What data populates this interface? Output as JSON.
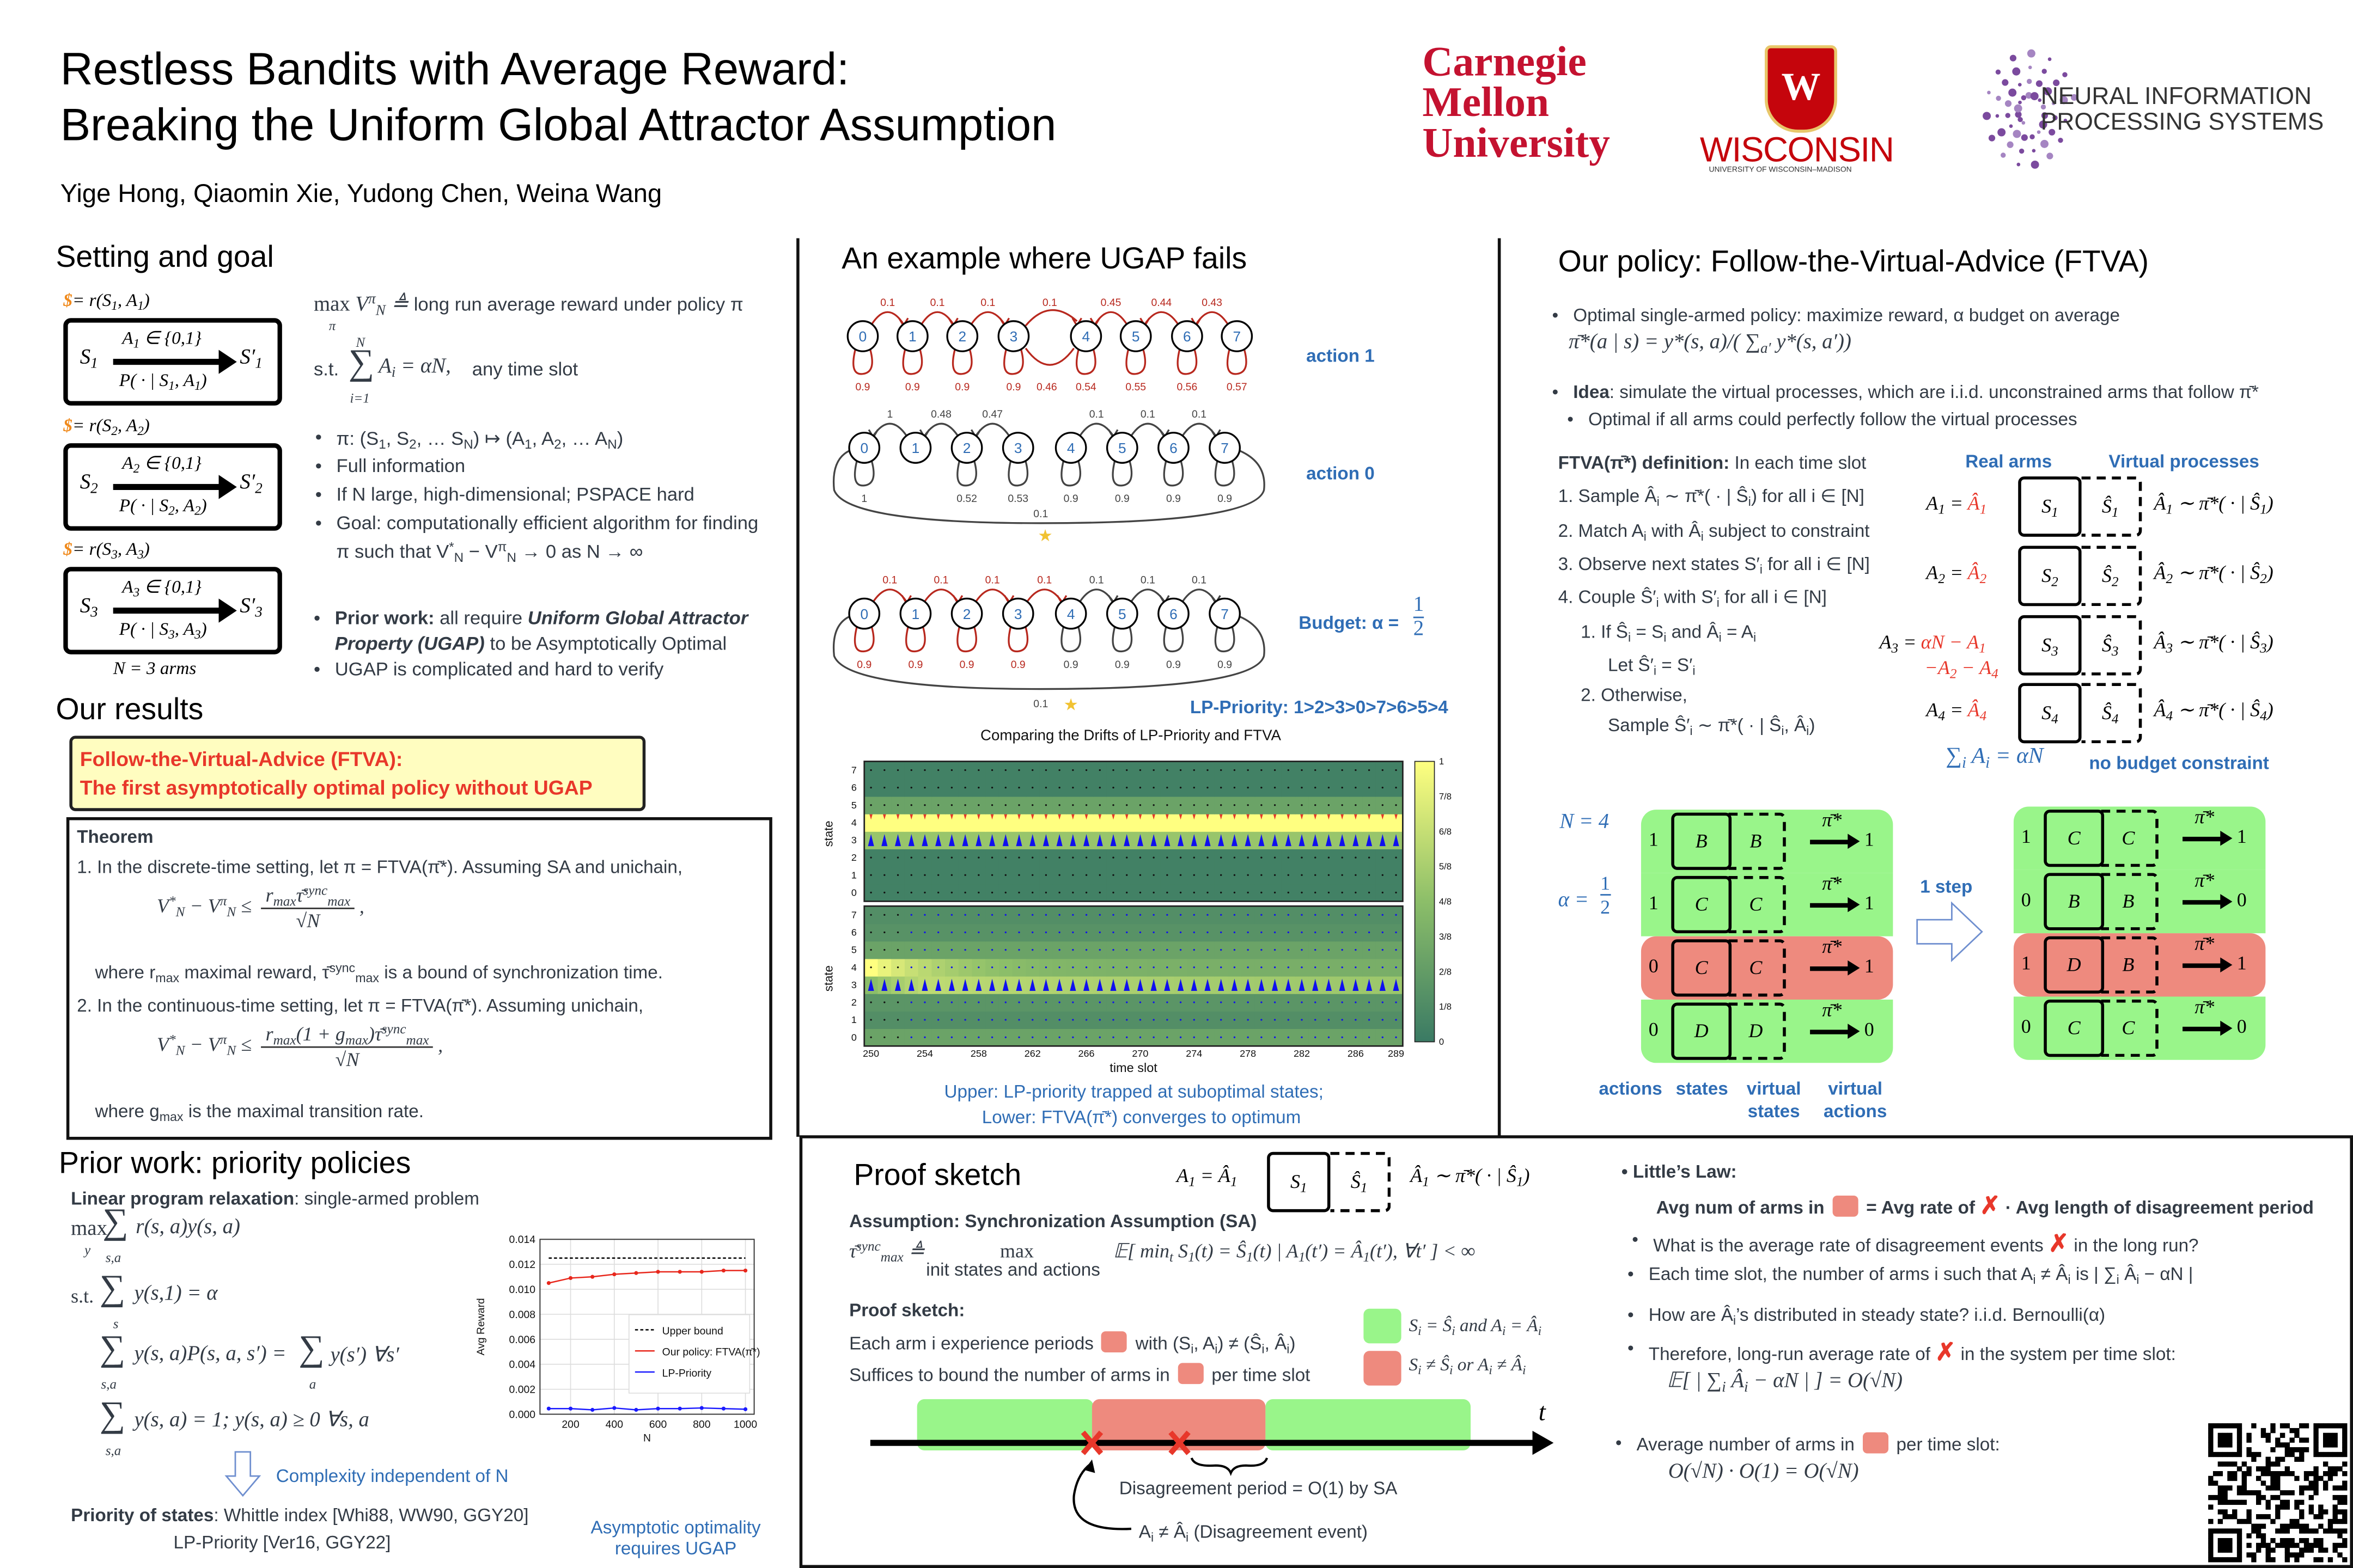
{
  "header": {
    "title_line1": "Restless Bandits with Average Reward:",
    "title_line2": "Breaking the Uniform Global Attractor Assumption",
    "authors": "Yige Hong, Qiaomin Xie, Yudong Chen, Weina Wang"
  },
  "logos": {
    "cmu": [
      "Carnegie",
      "Mellon",
      "University"
    ],
    "wisconsin": "WISCONSIN",
    "wisconsin_sub": "UNIVERSITY OF WISCONSIN–MADISON",
    "wisconsin_crest": "W",
    "neurips_line1": "NEURAL INFORMATION",
    "neurips_line2": "PROCESSING SYSTEMS"
  },
  "setting": {
    "heading": "Setting and goal",
    "dollar": "$",
    "arms": [
      {
        "reward": "= r(S_{1}, A_{1})",
        "action": "A_{1} ∈ {0,1}",
        "state": "S_{1}",
        "next": "S′_{1}",
        "trans": "P( · | S_{1}, A_{1})"
      },
      {
        "reward": "= r(S_{2}, A_{2})",
        "action": "A_{2} ∈ {0,1}",
        "state": "S_{2}",
        "next": "S′_{2}",
        "trans": "P( · | S_{2}, A_{2})"
      },
      {
        "reward": "= r(S_{3}, A_{3})",
        "action": "A_{3} ∈ {0,1}",
        "state": "S_{3}",
        "next": "S′_{3}",
        "trans": "P( · | S_{3}, A_{3})"
      }
    ],
    "n_arms": "N = 3 arms",
    "objective_max": "max",
    "objective_sub": "π",
    "objective_v": "V^{π}_{N} ≜",
    "objective_text": "long run average reward under policy π",
    "st": "s.t.",
    "sum_top": "N",
    "sum_bottom": "i=1",
    "constraint": "A_{i} = αN,",
    "constraint_text": "any time slot",
    "bullets": [
      "π: (S_{1}, S_{2}, … S_{N}) ↦ (A_{1}, A_{2}, … A_{N})",
      "Full information",
      "If N large, high-dimensional; PSPACE hard",
      "Goal: computationally efficient algorithm for finding",
      "π such that V^{*}_{N} − V^{π}_{N} → 0 as N → ∞"
    ],
    "prior_bold": "Prior work:",
    "prior_text1": " all require ",
    "prior_italic1": "Uniform Global Attractor",
    "prior_italic2": "Property (UGAP)",
    "prior_text2": " to be Asymptotically Optimal",
    "ugap_bullet": "UGAP is complicated and hard to verify"
  },
  "results": {
    "heading": "Our results",
    "highlight_line1": "Follow-the-Virtual-Advice (FTVA):",
    "highlight_line2": "The first asymptotically optimal policy without UGAP",
    "theorem_title": "Theorem",
    "item1": "1. In the discrete-time setting, let π = FTVA(π̄*). Assuming SA and unichain,",
    "f1_lhs": "V^{*}_{N} − V^{π}_{N} ≤",
    "f1_num": "r_{max}τ̄^{sync}_{max}",
    "f1_den": "√N",
    "f1_tail": ",",
    "where1": "where r_{max} maximal reward, τ̄^{sync}_{max} is a bound of synchronization time.",
    "item2": "2.  In the continuous-time setting, let π = FTVA(π̄*). Assuming unichain,",
    "f2_lhs": "V^{*}_{N} − V^{π}_{N} ≤",
    "f2_num": "r_{max}(1 + g_{max})τ̄^{sync}_{max}",
    "f2_den": "√N",
    "f2_tail": ",",
    "where2": "where g_{max} is the maximal transition rate."
  },
  "prior": {
    "heading": "Prior work: priority policies",
    "lp_bold": "Linear program relaxation",
    "lp_text": ": single-armed problem",
    "eq1_max": "max",
    "eq1_max_sub": "y",
    "eq1_sum_sub": "s,a",
    "eq1": "r(s, a)y(s, a)",
    "eq2_st": "s.t.",
    "eq2_sum_sub": "s",
    "eq2": "y(s,1) = α",
    "eq3_sum_sub": "s,a",
    "eq3": "y(s, a)P(s, a, s′) =",
    "eq3_sum2_sub": "a",
    "eq3_rhs": "y(s′)    ∀s′",
    "eq4_sum_sub": "s,a",
    "eq4": "y(s, a) = 1;    y(s, a) ≥ 0    ∀s, a",
    "complexity": "Complexity independent of N",
    "priority_bold": "Priority of states",
    "priority_text": ": Whittle index [Whi88, WW90, GGY20]",
    "lp_priority": "LP-Priority [Ver16, GGY22]",
    "asym_line1": "Asymptotic optimality",
    "asym_line2": "requires UGAP"
  },
  "chart_data": {
    "type": "line",
    "title": "",
    "xlabel": "N",
    "ylabel": "Avg Reward",
    "xlim": [
      60,
      1040
    ],
    "ylim": [
      0,
      0.014
    ],
    "xticks": [
      200,
      400,
      600,
      800,
      1000
    ],
    "yticks": [
      "0.000",
      "0.002",
      "0.004",
      "0.006",
      "0.008",
      "0.010",
      "0.012",
      "0.014"
    ],
    "grid": true,
    "legend_position": "center-right",
    "x": [
      100,
      200,
      300,
      400,
      500,
      600,
      700,
      800,
      900,
      1000
    ],
    "series": [
      {
        "name": "Upper bound",
        "color": "#000000",
        "style": "dashed",
        "values": [
          0.0125,
          0.0125,
          0.0125,
          0.0125,
          0.0125,
          0.0125,
          0.0125,
          0.0125,
          0.0125,
          0.0125
        ]
      },
      {
        "name": "Our policy: FTVA(π̄*)",
        "color": "#e8271c",
        "style": "solid",
        "values": [
          0.0105,
          0.0109,
          0.011,
          0.0112,
          0.0113,
          0.0114,
          0.0114,
          0.0114,
          0.0115,
          0.0115
        ]
      },
      {
        "name": "LP-Priority",
        "color": "#1a1aff",
        "style": "solid",
        "values": [
          0.00045,
          0.00045,
          0.00035,
          0.0005,
          0.00035,
          0.00045,
          0.00045,
          0.0005,
          0.00045,
          0.0004
        ]
      }
    ]
  },
  "example": {
    "heading": "An example where UGAP fails",
    "rows": [
      {
        "label": "action 1",
        "top": [
          "0.1",
          "0.1",
          "0.1",
          "0.1",
          "0.45",
          "0.44",
          "0.43"
        ],
        "top_dir": [
          "r",
          "r",
          "r",
          "r",
          "l",
          "l",
          "l"
        ],
        "top_color": [
          "#b8281e",
          "#b8281e",
          "#b8281e",
          "#b8281e",
          "#b8281e",
          "#b8281e",
          "#b8281e"
        ],
        "bottom": [
          "0.9",
          "0.9",
          "0.9",
          "0.9",
          "0.54",
          "0.55",
          "0.56",
          "0.57"
        ],
        "bottom_color": [
          "#b8281e",
          "#b8281e",
          "#b8281e",
          "#b8281e",
          "#b8281e",
          "#b8281e",
          "#b8281e",
          "#b8281e"
        ],
        "extra": "0.46",
        "loop": ""
      },
      {
        "label": "action 0",
        "top": [
          "1",
          "0.48",
          "0.47",
          "",
          "0.1",
          "0.1",
          "0.1"
        ],
        "top_dir": [
          "l",
          "l",
          "l",
          "",
          "r",
          "r",
          "r"
        ],
        "top_color": [
          "#444",
          "#444",
          "#444",
          "#444",
          "#444",
          "#444",
          "#444"
        ],
        "bottom": [
          "1",
          "",
          "0.52",
          "0.53",
          "0.9",
          "0.9",
          "0.9",
          "0.9"
        ],
        "bottom_color": [
          "#444",
          "#444",
          "#444",
          "#444",
          "#444",
          "#444",
          "#444",
          "#444"
        ],
        "extra": "",
        "loop": "0.1"
      },
      {
        "label": "Budget: α =",
        "top": [
          "0.1",
          "0.1",
          "0.1",
          "0.1",
          "0.1",
          "0.1",
          "0.1"
        ],
        "top_dir": [
          "r",
          "r",
          "r",
          "r",
          "r",
          "r",
          "r"
        ],
        "top_color": [
          "#b8281e",
          "#b8281e",
          "#b8281e",
          "#b8281e",
          "#444",
          "#444",
          "#444"
        ],
        "bottom": [
          "0.9",
          "0.9",
          "0.9",
          "0.9",
          "0.9",
          "0.9",
          "0.9",
          "0.9"
        ],
        "bottom_color": [
          "#b8281e",
          "#b8281e",
          "#b8281e",
          "#b8281e",
          "#444",
          "#444",
          "#444",
          "#444"
        ],
        "extra": "",
        "loop": "0.1"
      }
    ],
    "budget_num": "1",
    "budget_den": "2",
    "lp_priority": "LP-Priority: 1>2>3>0>7>6>5>4",
    "heatmap": {
      "title": "Comparing the Drifts of LP-Priority and FTVA",
      "ylabel": "state",
      "xlabel": "time slot",
      "xticks": [
        "250",
        "254",
        "258",
        "262",
        "266",
        "270",
        "274",
        "278",
        "282",
        "286",
        "289"
      ],
      "yticks": [
        "0",
        "1",
        "2",
        "3",
        "4",
        "5",
        "6",
        "7"
      ],
      "colorbar_ticks": [
        "0",
        "1/8",
        "2/8",
        "3/8",
        "4/8",
        "5/8",
        "6/8",
        "7/8",
        "1"
      ],
      "upper_row_values": [
        0.05,
        0.05,
        0.05,
        0.55,
        1.0,
        0.3,
        0.05,
        0.05
      ],
      "lower_row_values": [
        0.3,
        0.15,
        0.2,
        0.62,
        0.38,
        0.3,
        0.18,
        0.15
      ]
    },
    "caption1": "Upper: LP-priority trapped at suboptimal states;",
    "caption2": "Lower: FTVA(π̄*) converges to optimum"
  },
  "policy": {
    "heading": "Our policy: Follow-the-Virtual-Advice (FTVA)",
    "b1": "Optimal single-armed policy: maximize reward, α budget on average",
    "formula": "π̄*(a | s) = y*(s, a)/( ∑_{a′} y*(s, a′))",
    "idea_bold": "Idea",
    "idea_text": ": simulate the virtual processes, which are i.i.d. unconstrained arms that follow π̄*",
    "sub_bullet": "Optimal if all arms could perfectly follow the virtual processes",
    "def_bold": "FTVA(π̄*) definition:",
    "def_text": " In each time slot",
    "steps": [
      "1. Sample  Â_{i} ∼ π̄*( · | Ŝ_{i}) for all i ∈ [N]",
      "2. Match A_{i} with  Â_{i} subject to constraint",
      "3. Observe next states S′_{i} for all i ∈ [N]",
      "4. Couple Ŝ′_{i} with S′_{i} for all i ∈ [N]",
      "1. If Ŝ_{i} = S_{i} and  Â_{i} = A_{i}",
      "Let Ŝ′_{i} = S′_{i}",
      "2. Otherwise,",
      "Sample Ŝ′_{i} ∼ π̄*( · | Ŝ_{i},  Â_{i})"
    ],
    "real_arms": "Real arms",
    "virtual_processes": "Virtual processes",
    "arms": [
      {
        "lhs": "A_{1} =",
        "rhs": "Â_{1}",
        "s": "S_{1}",
        "vs": "Ŝ_{1}",
        "dist": "Â_{1} ∼ π̄*( · | Ŝ_{1})"
      },
      {
        "lhs": "A_{2} =",
        "rhs": "Â_{2}",
        "s": "S_{2}",
        "vs": "Ŝ_{2}",
        "dist": "Â_{2} ∼ π̄*( · | Ŝ_{2})"
      },
      {
        "lhs": "A_{3} =",
        "rhs": "αN − A_{1}",
        "rhs2": "−A_{2} − A_{4}",
        "s": "S_{3}",
        "vs": "Ŝ_{3}",
        "dist": "Â_{3} ∼ π̄*( · | Ŝ_{3})"
      },
      {
        "lhs": "A_{4} =",
        "rhs": "Â_{4}",
        "s": "S_{4}",
        "vs": "Ŝ_{4}",
        "dist": "Â_{4} ∼ π̄*( · | Ŝ_{4})"
      }
    ],
    "sum_constraint": "∑_{i} A_{i} = αN",
    "no_budget": "no budget constraint",
    "n4": "N = 4",
    "alpha": "α =",
    "alpha_num": "1",
    "alpha_den": "2",
    "one_step": "1 step",
    "pi_label": "π̄*",
    "before": [
      {
        "action": "1",
        "state": "B",
        "virtual": "B",
        "vaction": "1",
        "color": "green"
      },
      {
        "action": "1",
        "state": "C",
        "virtual": "C",
        "vaction": "1",
        "color": "green"
      },
      {
        "action": "0",
        "state": "C",
        "virtual": "C",
        "vaction": "1",
        "color": "salmon"
      },
      {
        "action": "0",
        "state": "D",
        "virtual": "D",
        "vaction": "0",
        "color": "green"
      }
    ],
    "after": [
      {
        "action": "1",
        "state": "C",
        "virtual": "C",
        "vaction": "1",
        "color": "green"
      },
      {
        "action": "0",
        "state": "B",
        "virtual": "B",
        "vaction": "0",
        "color": "green"
      },
      {
        "action": "1",
        "state": "D",
        "virtual": "B",
        "vaction": "1",
        "color": "salmon"
      },
      {
        "action": "0",
        "state": "C",
        "virtual": "C",
        "vaction": "0",
        "color": "green"
      }
    ],
    "col_actions": "actions",
    "col_states": "states",
    "col_virtual_states": [
      "virtual",
      "states"
    ],
    "col_virtual_actions": [
      "virtual",
      "actions"
    ]
  },
  "proof": {
    "heading": "Proof sketch",
    "diag_lhs": "A_{1} =  Â_{1}",
    "diag_s": "S_{1}",
    "diag_vs": "Ŝ_{1}",
    "diag_dist": "Â_{1} ∼ π̄*( · | Ŝ_{1})",
    "assumption": "Assumption: Synchronization Assumption (SA)",
    "tau": "τ̄^{sync}_{max} ≜",
    "tau_max": "max",
    "tau_max_sub": "init states and actions",
    "tau_expr": "𝔼[ min_{t} S_{1}(t) = Ŝ_{1}(t) | A_{1}(t′) =  Â_{1}(t′), ∀t′ ] < ∞",
    "sketch_label": "Proof sketch:",
    "line1a": "Each arm i experience periods",
    "line1b": "with (S_{i}, A_{i}) ≠ (Ŝ_{i},  Â_{i})",
    "line2a": "Suffices to bound the number of arms in",
    "line2b": "per time slot",
    "legend_green": "S_{i} = Ŝ_{i} and A_{i} =  Â_{i}",
    "legend_red": "S_{i} ≠ Ŝ_{i} or A_{i} ≠  Â_{i}",
    "t_label": "t",
    "period": "Disagreement period = O(1) by SA",
    "event": "A_{i} ≠  Â_{i} (Disagreement event)",
    "littles_law": "Little’s Law:",
    "ll_a": "Avg num of arms in",
    "ll_b": "= Avg rate of",
    "ll_c": "· Avg length of disagreement period",
    "q1a": "What is the average rate of disagreement events",
    "q1b": "in the long run?",
    "q2": "Each time slot, the number of arms i such that A_{i} ≠  Â_{i} is | ∑_{i}  Â_{i} − αN |",
    "q3": "How are  Â_{i}’s distributed in steady state?  i.i.d. Bernoulli(α)",
    "q4a": "Therefore, long-run average rate of",
    "q4b": "in the system per time slot:",
    "q4_formula": "𝔼[ | ∑_{i}  Â_{i} − αN | ] = O(√N)",
    "q5a": "Average number of arms in",
    "q5b": "per time slot:",
    "q5_formula": "O(√N) · O(1) = O(√N)",
    "cross": "✗"
  }
}
